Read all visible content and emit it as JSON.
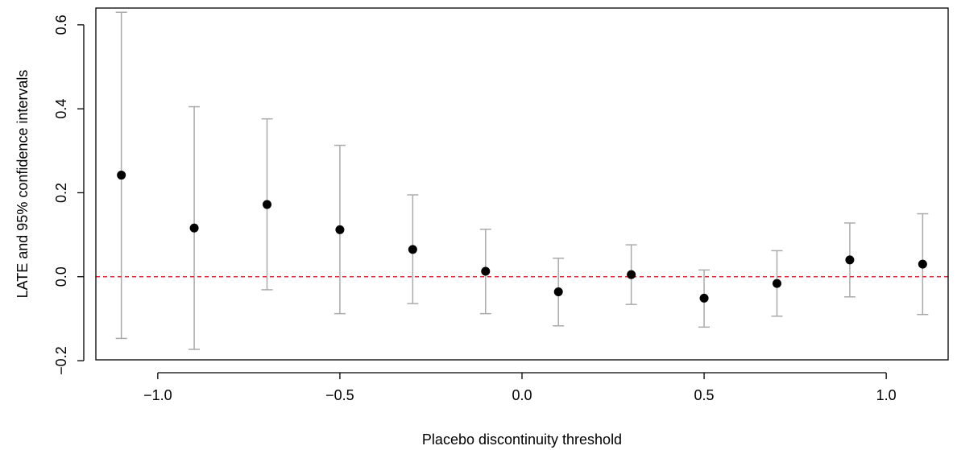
{
  "chart_data": {
    "type": "scatter",
    "title": "",
    "xlabel": "Placebo discontinuity threshold",
    "ylabel": "LATE and 95% confidence intervals",
    "xlim": [
      -1.17,
      1.17
    ],
    "ylim": [
      -0.198,
      0.64
    ],
    "x_ticks": [
      -1.0,
      -0.5,
      0.0,
      0.5,
      1.0
    ],
    "x_tick_labels": [
      "−1.0",
      "−0.5",
      "0.0",
      "0.5",
      "1.0"
    ],
    "y_ticks": [
      -0.2,
      0.0,
      0.2,
      0.4,
      0.6
    ],
    "y_tick_labels": [
      "−0.2",
      "0.0",
      "0.2",
      "0.4",
      "0.6"
    ],
    "grid": false,
    "reference_line": {
      "y": 0.0,
      "color": "#DF2A36",
      "style": "dashed"
    },
    "point_color": "#000000",
    "errorbar_color": "#AAAAAA",
    "points": [
      {
        "x": -1.1,
        "y": 0.242,
        "lower": -0.147,
        "upper": 0.63
      },
      {
        "x": -0.9,
        "y": 0.116,
        "lower": -0.173,
        "upper": 0.405
      },
      {
        "x": -0.7,
        "y": 0.172,
        "lower": -0.031,
        "upper": 0.376
      },
      {
        "x": -0.5,
        "y": 0.112,
        "lower": -0.088,
        "upper": 0.313
      },
      {
        "x": -0.3,
        "y": 0.065,
        "lower": -0.064,
        "upper": 0.195
      },
      {
        "x": -0.1,
        "y": 0.013,
        "lower": -0.088,
        "upper": 0.113
      },
      {
        "x": 0.1,
        "y": -0.036,
        "lower": -0.117,
        "upper": 0.044
      },
      {
        "x": 0.3,
        "y": 0.005,
        "lower": -0.066,
        "upper": 0.076
      },
      {
        "x": 0.5,
        "y": -0.051,
        "lower": -0.12,
        "upper": 0.016
      },
      {
        "x": 0.7,
        "y": -0.016,
        "lower": -0.094,
        "upper": 0.062
      },
      {
        "x": 0.9,
        "y": 0.04,
        "lower": -0.048,
        "upper": 0.128
      },
      {
        "x": 1.1,
        "y": 0.03,
        "lower": -0.09,
        "upper": 0.15
      }
    ]
  }
}
